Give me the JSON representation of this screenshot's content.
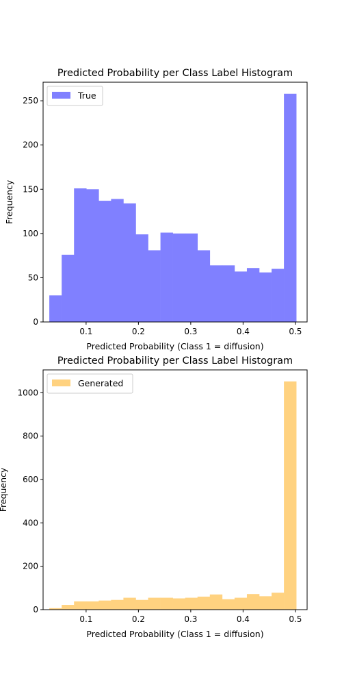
{
  "chart_data": [
    {
      "type": "bar",
      "title": "Predicted Probability per Class Label Histogram",
      "xlabel": "Predicted Probability (Class 1 = diffusion)",
      "ylabel": "Frequency",
      "color": "#8080ff",
      "xlim": [
        0.0178,
        0.5224
      ],
      "ylim": [
        0,
        271
      ],
      "xticks": [
        0.1,
        0.2,
        0.3,
        0.4,
        0.5
      ],
      "xtick_labels": [
        "0.1",
        "0.2",
        "0.3",
        "0.4",
        "0.5"
      ],
      "yticks": [
        0,
        50,
        100,
        150,
        200,
        250
      ],
      "ytick_labels": [
        "0",
        "50",
        "100",
        "150",
        "200",
        "250"
      ],
      "legend": {
        "label": "True",
        "position": "upper left"
      },
      "bin_edges": [
        0.0297,
        0.0533,
        0.0769,
        0.1005,
        0.1241,
        0.1477,
        0.1713,
        0.1949,
        0.2185,
        0.2421,
        0.2657,
        0.2893,
        0.3129,
        0.3365,
        0.3601,
        0.3837,
        0.4073,
        0.4309,
        0.4545,
        0.4781,
        0.5017
      ],
      "values": [
        30,
        76,
        151,
        150,
        137,
        139,
        134,
        99,
        81,
        101,
        100,
        100,
        81,
        64,
        64,
        57,
        61,
        56,
        60,
        258
      ]
    },
    {
      "type": "bar",
      "title": "Predicted Probability per Class Label Histogram",
      "xlabel": "Predicted Probability (Class 1 = diffusion)",
      "ylabel": "Frequency",
      "color": "#ffd280",
      "xlim": [
        0.0178,
        0.5224
      ],
      "ylim": [
        0,
        1105
      ],
      "xticks": [
        0.1,
        0.2,
        0.3,
        0.4,
        0.5
      ],
      "xtick_labels": [
        "0.1",
        "0.2",
        "0.3",
        "0.4",
        "0.5"
      ],
      "yticks": [
        0,
        200,
        400,
        600,
        800,
        1000
      ],
      "ytick_labels": [
        "0",
        "200",
        "400",
        "600",
        "800",
        "1000"
      ],
      "legend": {
        "label": "Generated",
        "position": "upper left"
      },
      "bin_edges": [
        0.0297,
        0.0533,
        0.0769,
        0.1005,
        0.1241,
        0.1477,
        0.1713,
        0.1949,
        0.2185,
        0.2421,
        0.2657,
        0.2893,
        0.3129,
        0.3365,
        0.3601,
        0.3837,
        0.4073,
        0.4309,
        0.4545,
        0.4781,
        0.5017
      ],
      "values": [
        7,
        22,
        38,
        38,
        42,
        45,
        55,
        45,
        55,
        55,
        52,
        55,
        60,
        70,
        48,
        55,
        72,
        62,
        78,
        1052
      ]
    }
  ]
}
